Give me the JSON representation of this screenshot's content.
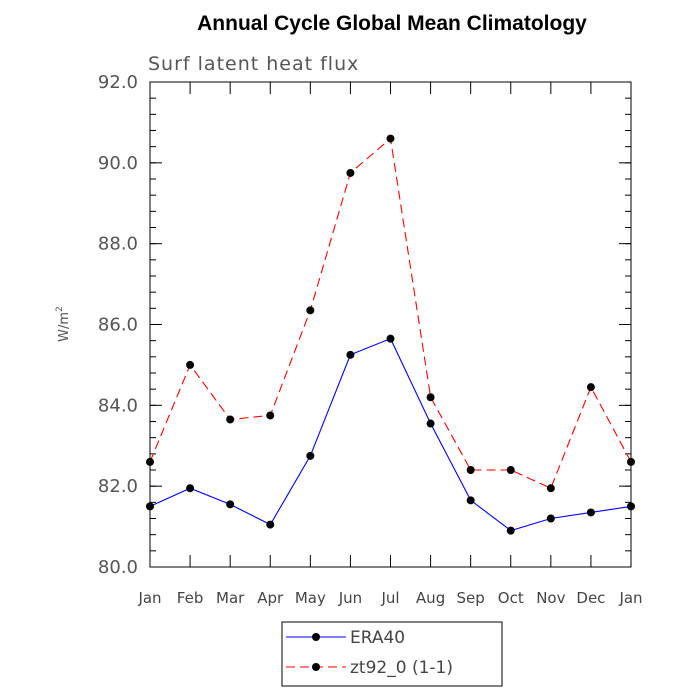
{
  "chart_data": {
    "type": "line",
    "title": "Annual Cycle Global Mean Climatology",
    "subtitle": "Surf latent heat flux",
    "ylabel_base": "W/m",
    "ylabel_sup": "2",
    "xlabel": "",
    "categories": [
      "Jan",
      "Feb",
      "Mar",
      "Apr",
      "May",
      "Jun",
      "Jul",
      "Aug",
      "Sep",
      "Oct",
      "Nov",
      "Dec",
      "Jan"
    ],
    "ylim": [
      80.0,
      92.0
    ],
    "yticks": [
      "80.0",
      "82.0",
      "84.0",
      "86.0",
      "88.0",
      "90.0",
      "92.0"
    ],
    "ytick_values": [
      80,
      82,
      84,
      86,
      88,
      90,
      92
    ],
    "grid": false,
    "legend_position": "bottom",
    "series": [
      {
        "name": "ERA40",
        "color": "#0000ff",
        "dash": "solid",
        "values": [
          81.5,
          81.95,
          81.55,
          81.05,
          82.75,
          85.25,
          85.65,
          83.55,
          81.65,
          80.9,
          81.2,
          81.35,
          81.5
        ]
      },
      {
        "name": "zt92_0 (1-1)",
        "color": "#ff0000",
        "dash": "dashed",
        "values": [
          82.6,
          85.0,
          83.65,
          83.75,
          86.35,
          89.75,
          90.6,
          84.2,
          82.4,
          82.4,
          81.95,
          84.45,
          82.6
        ]
      }
    ]
  }
}
